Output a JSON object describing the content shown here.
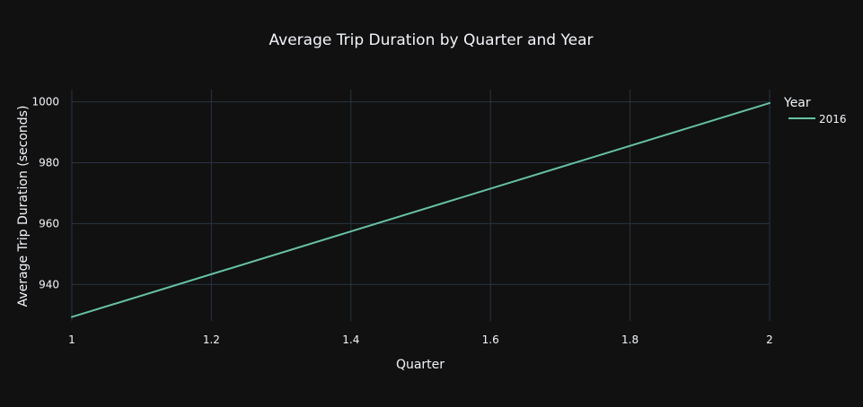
{
  "chart_data": {
    "type": "line",
    "title": "Average Trip Duration by Quarter and Year",
    "xlabel": "Quarter",
    "ylabel": "Average Trip Duration (seconds)",
    "xlim": [
      1,
      2
    ],
    "ylim": [
      928,
      1004
    ],
    "x_ticks": [
      1,
      1.2,
      1.4,
      1.6,
      1.8,
      2
    ],
    "x_tick_labels": [
      "1",
      "1.2",
      "1.4",
      "1.6",
      "1.8",
      "2"
    ],
    "y_ticks": [
      940,
      960,
      980,
      1000
    ],
    "y_tick_labels": [
      "940",
      "960",
      "980",
      "1000"
    ],
    "grid": true,
    "legend": {
      "title": "Year",
      "placement": "top-right"
    },
    "series": [
      {
        "name": "2016",
        "color": "#66c2a5",
        "x": [
          1,
          2
        ],
        "y": [
          929.3,
          999.6
        ]
      }
    ]
  },
  "colors": {
    "background": "#111111",
    "grid": "#283442",
    "text": "#f2f5fa"
  }
}
